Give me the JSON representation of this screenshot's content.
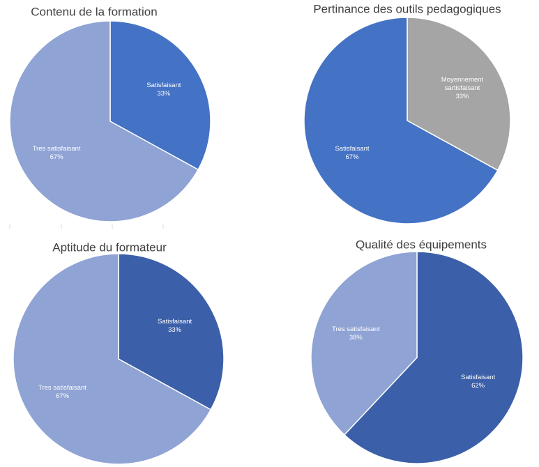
{
  "chart_data": [
    {
      "type": "pie",
      "title": "Contenu de la formation",
      "slices": [
        {
          "label": "Satisfaisant",
          "value": 33,
          "percent_label": "33%",
          "color": "#4472c4"
        },
        {
          "label": "Tres satisfaisant",
          "value": 67,
          "percent_label": "67%",
          "color": "#8fa3d4"
        }
      ]
    },
    {
      "type": "pie",
      "title": "Pertinance des outils pedagogiques",
      "slices": [
        {
          "label": "Moyennement sartisfaisant",
          "label_lines": [
            "Moyennement",
            "sartisfaisant"
          ],
          "value": 33,
          "percent_label": "33%",
          "color": "#a5a5a5"
        },
        {
          "label": "Satisfaisant",
          "value": 67,
          "percent_label": "67%",
          "color": "#4472c4"
        }
      ]
    },
    {
      "type": "pie",
      "title": "Aptitude du formateur",
      "slices": [
        {
          "label": "Satisfaisant",
          "value": 33,
          "percent_label": "33%",
          "color": "#3b5fa8"
        },
        {
          "label": "Tres satisfaisant",
          "value": 67,
          "percent_label": "67%",
          "color": "#8fa3d4"
        }
      ]
    },
    {
      "type": "pie",
      "title": "Qualité des équipements",
      "slices": [
        {
          "label": "Satisfaisant",
          "value": 62,
          "percent_label": "62%",
          "color": "#3b5fa8"
        },
        {
          "label": "Tres satisfaisant",
          "value": 38,
          "percent_label": "38%",
          "color": "#8fa3d4"
        }
      ]
    }
  ]
}
